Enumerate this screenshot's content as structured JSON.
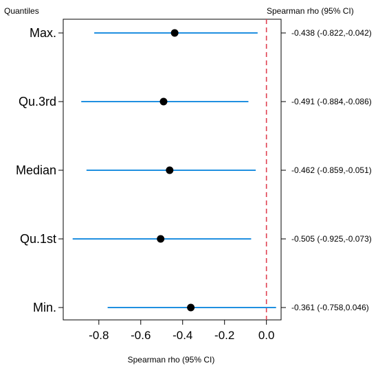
{
  "chart_data": {
    "type": "forest",
    "left_header": "Quantiles",
    "right_header": "Spearman rho (95% CI)",
    "xlabel": "Spearman rho (95% CI)",
    "xlim": [
      -0.97,
      0.07
    ],
    "xticks": [
      -0.8,
      -0.6,
      -0.4,
      -0.2,
      0.0
    ],
    "xtick_labels": [
      "-0.8",
      "-0.6",
      "-0.4",
      "-0.2",
      "0.0"
    ],
    "reference_line": 0.0,
    "colors": {
      "ci": "#1f8fe0",
      "point": "#000000",
      "reference": "#e04050"
    },
    "rows": [
      {
        "label": "Max.",
        "estimate": -0.438,
        "lower": -0.822,
        "upper": -0.042,
        "text": "-0.438 (-0.822,-0.042)"
      },
      {
        "label": "Qu.3rd",
        "estimate": -0.491,
        "lower": -0.884,
        "upper": -0.086,
        "text": "-0.491 (-0.884,-0.086)"
      },
      {
        "label": "Median",
        "estimate": -0.462,
        "lower": -0.859,
        "upper": -0.051,
        "text": "-0.462 (-0.859,-0.051)"
      },
      {
        "label": "Qu.1st",
        "estimate": -0.505,
        "lower": -0.925,
        "upper": -0.073,
        "text": "-0.505 (-0.925,-0.073)"
      },
      {
        "label": "Min.",
        "estimate": -0.361,
        "lower": -0.758,
        "upper": 0.046,
        "text": "-0.361 (-0.758,0.046)"
      }
    ]
  }
}
